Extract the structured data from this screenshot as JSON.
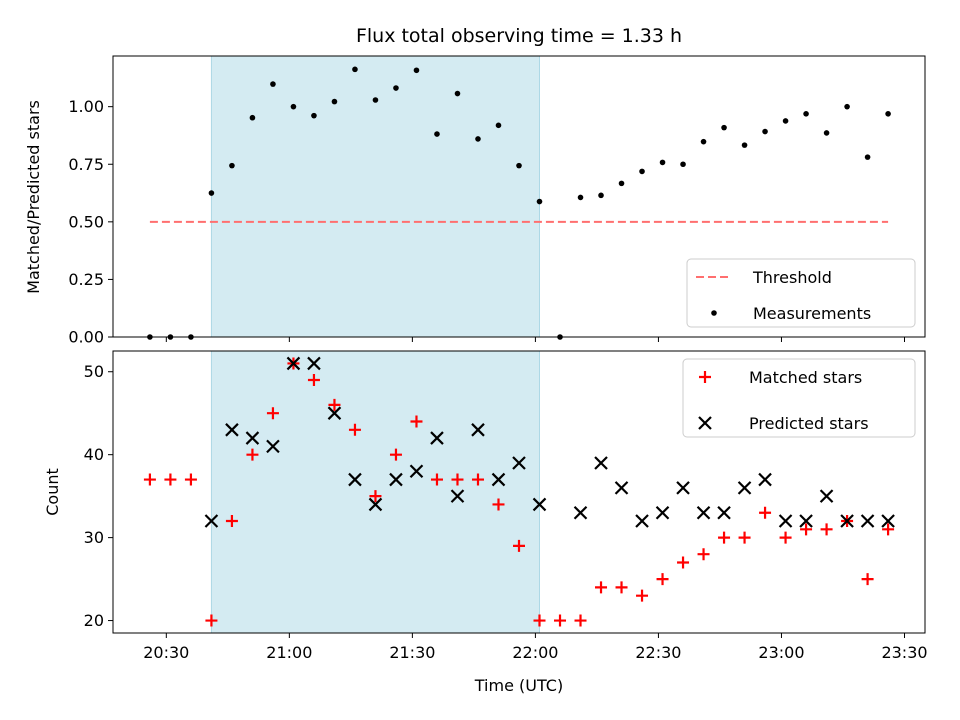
{
  "chart_data": [
    {
      "type": "scatter",
      "title": "Flux total observing time = 1.33 h",
      "xlabel": "",
      "ylabel": "Matched/Predicted stars",
      "ylim": [
        0,
        1.22
      ],
      "yticks": [
        "0.00",
        "0.25",
        "0.50",
        "0.75",
        "1.00"
      ],
      "shaded_range": [
        "20:41",
        "22:01"
      ],
      "shade_color": "#add8e6",
      "legend": {
        "placement": "lower-right",
        "entries": [
          "Threshold",
          "Measurements"
        ]
      },
      "threshold": {
        "name": "Threshold",
        "value": 0.5,
        "x": [
          "20:26",
          "23:26"
        ],
        "color": "#ff6f6f"
      },
      "series": [
        {
          "name": "Measurements",
          "color": "#000000",
          "x": [
            "20:26",
            "20:31",
            "20:36",
            "20:41",
            "20:46",
            "20:51",
            "20:56",
            "21:01",
            "21:06",
            "21:11",
            "21:16",
            "21:21",
            "21:26",
            "21:31",
            "21:36",
            "21:41",
            "21:46",
            "21:51",
            "21:56",
            "22:01",
            "22:06",
            "22:11",
            "22:16",
            "22:21",
            "22:26",
            "22:31",
            "22:36",
            "22:41",
            "22:46",
            "22:51",
            "22:56",
            "23:01",
            "23:06",
            "23:11",
            "23:16",
            "23:21",
            "23:26"
          ],
          "y": [
            0,
            0,
            0,
            0.625,
            0.744,
            0.952,
            1.098,
            1.0,
            0.961,
            1.022,
            1.162,
            1.029,
            1.081,
            1.158,
            0.881,
            1.057,
            0.86,
            0.919,
            0.744,
            0.588,
            0,
            0.606,
            0.615,
            0.667,
            0.719,
            0.758,
            0.75,
            0.848,
            0.909,
            0.833,
            0.892,
            0.938,
            0.969,
            0.886,
            1.0,
            0.781,
            0.969
          ]
        }
      ]
    },
    {
      "type": "scatter",
      "title": "",
      "xlabel": "Time (UTC)",
      "ylabel": "Count",
      "ylim": [
        18.5,
        52.5
      ],
      "yticks": [
        "20",
        "30",
        "40",
        "50"
      ],
      "xticks": [
        "20:30",
        "21:00",
        "21:30",
        "22:00",
        "22:30",
        "23:00",
        "23:30"
      ],
      "shaded_range": [
        "20:41",
        "22:01"
      ],
      "shade_color": "#add8e6",
      "legend": {
        "placement": "top-right",
        "entries": [
          "Matched stars",
          "Predicted stars"
        ]
      },
      "series": [
        {
          "name": "Matched stars",
          "marker": "plus",
          "color": "#ff0000",
          "x": [
            "20:26",
            "20:31",
            "20:36",
            "20:41",
            "20:46",
            "20:51",
            "20:56",
            "21:01",
            "21:06",
            "21:11",
            "21:16",
            "21:21",
            "21:26",
            "21:31",
            "21:36",
            "21:41",
            "21:46",
            "21:51",
            "21:56",
            "22:01",
            "22:06",
            "22:11",
            "22:16",
            "22:21",
            "22:26",
            "22:31",
            "22:36",
            "22:41",
            "22:46",
            "22:51",
            "22:56",
            "23:01",
            "23:06",
            "23:11",
            "23:16",
            "23:21",
            "23:26"
          ],
          "y": [
            37,
            37,
            37,
            20,
            32,
            40,
            45,
            51,
            49,
            46,
            43,
            35,
            40,
            44,
            37,
            37,
            37,
            34,
            29,
            20,
            20,
            20,
            24,
            24,
            23,
            25,
            27,
            28,
            30,
            30,
            33,
            30,
            31,
            31,
            32,
            25,
            31
          ]
        },
        {
          "name": "Predicted stars",
          "marker": "x",
          "color": "#000000",
          "x": [
            "20:41",
            "20:46",
            "20:51",
            "20:56",
            "21:01",
            "21:06",
            "21:11",
            "21:16",
            "21:21",
            "21:26",
            "21:31",
            "21:36",
            "21:41",
            "21:46",
            "21:51",
            "21:56",
            "22:01",
            "22:11",
            "22:16",
            "22:21",
            "22:26",
            "22:31",
            "22:36",
            "22:41",
            "22:46",
            "22:51",
            "22:56",
            "23:01",
            "23:06",
            "23:11",
            "23:16",
            "23:21",
            "23:26"
          ],
          "y": [
            32,
            43,
            42,
            41,
            51,
            51,
            45,
            37,
            34,
            37,
            38,
            42,
            35,
            43,
            37,
            39,
            34,
            33,
            39,
            36,
            32,
            33,
            36,
            33,
            33,
            36,
            37,
            32,
            32,
            35,
            32,
            32,
            32
          ]
        }
      ]
    }
  ]
}
